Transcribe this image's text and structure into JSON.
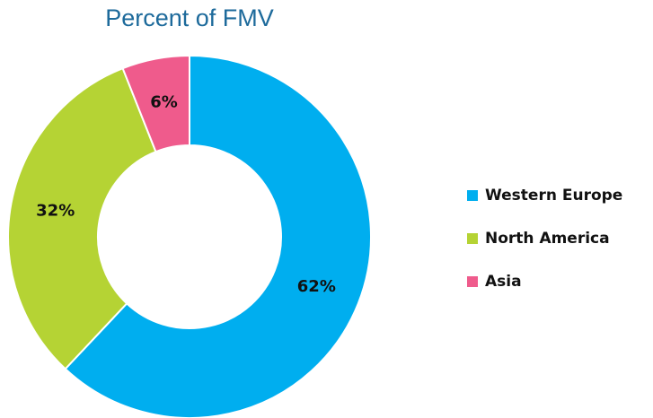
{
  "chart_data": {
    "type": "donut",
    "title": "Percent of FMV",
    "categories": [
      "Western Europe",
      "North America",
      "Asia"
    ],
    "values": [
      62,
      32,
      6
    ],
    "value_labels": [
      "62%",
      "32%",
      "6%"
    ],
    "colors": [
      "#00aeef",
      "#b5d334",
      "#ef5b8c"
    ],
    "legend": "right"
  }
}
